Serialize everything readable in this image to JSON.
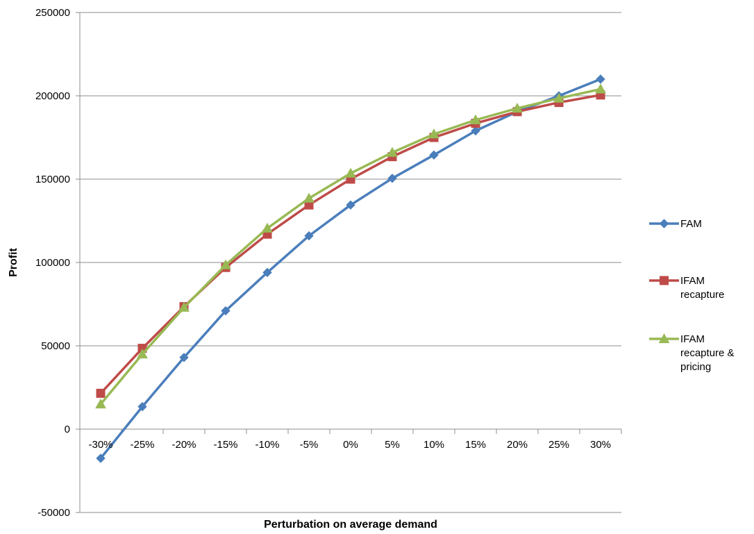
{
  "chart_data": {
    "type": "line",
    "title": "",
    "xlabel": "Perturbation on average demand",
    "ylabel": "Profit",
    "categories": [
      "-30%",
      "-25%",
      "-20%",
      "-15%",
      "-10%",
      "-5%",
      "0%",
      "5%",
      "10%",
      "15%",
      "20%",
      "25%",
      "30%"
    ],
    "ylim": [
      -50000,
      250000
    ],
    "yticks": [
      -50000,
      0,
      50000,
      100000,
      150000,
      200000,
      250000
    ],
    "ytick_labels": [
      "-50000",
      "0",
      "50000",
      "100000",
      "150000",
      "200000",
      "250000"
    ],
    "grid": "horizontal",
    "legend_position": "right",
    "series": [
      {
        "name": "FAM",
        "color": "#4a7ebb",
        "marker": "diamond",
        "values": [
          -17500,
          13500,
          43000,
          71000,
          94000,
          116000,
          134500,
          150500,
          164500,
          179000,
          190500,
          200000,
          210000
        ]
      },
      {
        "name": "IFAM recapture",
        "color": "#be4b48",
        "marker": "square",
        "values": [
          21500,
          48500,
          73500,
          97000,
          117000,
          134500,
          150000,
          163500,
          175000,
          183500,
          190500,
          196000,
          200500
        ]
      },
      {
        "name": "IFAM recapture & pricing",
        "color": "#98b954",
        "marker": "triangle",
        "values": [
          15000,
          45000,
          73000,
          98500,
          120500,
          138500,
          153500,
          166000,
          177000,
          185500,
          192500,
          198500,
          204000
        ]
      }
    ]
  }
}
